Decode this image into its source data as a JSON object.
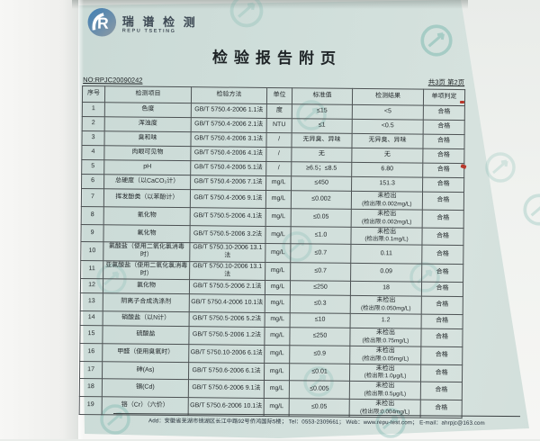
{
  "report": {
    "brand_cn": "瑞 谱 检 测",
    "brand_en": "REPU TSETING",
    "title": "检验报告附页",
    "report_no": "NO:RPJC20090242",
    "page_info": "共3页 第2页",
    "footer": "Add：安徽省芜湖市镜湖区长江中路92号侨鸿国际5楼；  Tel：0553-2309661；  Web：www.repu-test.com；  E-mail：ahrpjc@163.com"
  },
  "icons": {
    "logo": "repu-circle-r-logo",
    "watermark": "repu-circle-r-watermark"
  },
  "colors": {
    "paper": "#cfdeda",
    "watermark_teal": "#63ada3",
    "logo_blue": "#3f7fb5",
    "table_line": "#4d5254",
    "red_mark": "#b8382c"
  },
  "table": {
    "headers": [
      "序号",
      "检测项目",
      "检验方法",
      "单位",
      "标准值",
      "检测结果",
      "单项判定"
    ],
    "rows": [
      {
        "no": "1",
        "item": "色度",
        "method": "GB/T 5750.4-2006 1.1法",
        "unit": "度",
        "standard": "≤15",
        "result": "<5",
        "result_note": "",
        "verdict": "合格"
      },
      {
        "no": "2",
        "item": "浑浊度",
        "method": "GB/T 5750.4-2006 2.1法",
        "unit": "NTU",
        "standard": "≤1",
        "result": "<0.5",
        "result_note": "",
        "verdict": "合格"
      },
      {
        "no": "3",
        "item": "臭和味",
        "method": "GB/T 5750.4-2006 3.1法",
        "unit": "/",
        "standard": "无异臭、异味",
        "result": "无异臭、异味",
        "result_note": "",
        "verdict": "合格"
      },
      {
        "no": "4",
        "item": "肉眼可见物",
        "method": "GB/T 5750.4-2006 4.1法",
        "unit": "/",
        "standard": "无",
        "result": "无",
        "result_note": "",
        "verdict": "合格"
      },
      {
        "no": "5",
        "item": "pH",
        "method": "GB/T 5750.4-2006 5.1法",
        "unit": "/",
        "standard": "≥6.5；≤8.5",
        "result": "6.80",
        "result_note": "",
        "verdict": "合格"
      },
      {
        "no": "6",
        "item": "总硬度（以CaCO₃计）",
        "method": "GB/T 5750.4-2006 7.1法",
        "unit": "mg/L",
        "standard": "≤450",
        "result": "151.3",
        "result_note": "",
        "verdict": "合格"
      },
      {
        "no": "7",
        "item": "挥发酚类（以苯酚计）",
        "method": "GB/T 5750.4-2006 9.1法",
        "unit": "mg/L",
        "standard": "≤0.002",
        "result": "未检出",
        "result_note": "(检出限:0.002mg/L)",
        "verdict": "合格"
      },
      {
        "no": "8",
        "item": "氰化物",
        "method": "GB/T 5750.5-2006 4.1法",
        "unit": "mg/L",
        "standard": "≤0.05",
        "result": "未检出",
        "result_note": "(检出限:0.002mg/L)",
        "verdict": "合格"
      },
      {
        "no": "9",
        "item": "氟化物",
        "method": "GB/T 5750.5-2006 3.2法",
        "unit": "mg/L",
        "standard": "≤1.0",
        "result": "未检出",
        "result_note": "(检出限:0.1mg/L)",
        "verdict": "合格"
      },
      {
        "no": "10",
        "item": "氯酸盐（使用二氧化氯消毒时）",
        "method": "GB/T 5750.10-2006 13.1法",
        "unit": "mg/L",
        "standard": "≤0.7",
        "result": "0.11",
        "result_note": "",
        "verdict": "合格"
      },
      {
        "no": "11",
        "item": "亚氯酸盐（使用二氧化氯消毒时）",
        "method": "GB/T 5750.10-2006 13.1法",
        "unit": "mg/L",
        "standard": "≤0.7",
        "result": "0.09",
        "result_note": "",
        "verdict": "合格"
      },
      {
        "no": "12",
        "item": "氯化物",
        "method": "GB/T 5750.5-2006 2.1法",
        "unit": "mg/L",
        "standard": "≤250",
        "result": "18",
        "result_note": "",
        "verdict": "合格"
      },
      {
        "no": "13",
        "item": "阴离子合成洗涤剂",
        "method": "GB/T 5750.4-2006 10.1法",
        "unit": "mg/L",
        "standard": "≤0.3",
        "result": "未检出",
        "result_note": "(检出限:0.050mg/L)",
        "verdict": "合格"
      },
      {
        "no": "14",
        "item": "硝酸盐（以N计）",
        "method": "GB/T 5750.5-2006 5.2法",
        "unit": "mg/L",
        "standard": "≤10",
        "result": "1.2",
        "result_note": "",
        "verdict": "合格"
      },
      {
        "no": "15",
        "item": "硫酸盐",
        "method": "GB/T 5750.5-2006 1.2法",
        "unit": "mg/L",
        "standard": "≤250",
        "result": "未检出",
        "result_note": "(检出限:0.75mg/L)",
        "verdict": "合格"
      },
      {
        "no": "16",
        "item": "甲醛（使用臭氧时）",
        "method": "GB/T 5750.10-2006 6.1法",
        "unit": "mg/L",
        "standard": "≤0.9",
        "result": "未检出",
        "result_note": "(检出限:0.05mg/L)",
        "verdict": "合格"
      },
      {
        "no": "17",
        "item": "砷(As)",
        "method": "GB/T 5750.6-2006 6.1法",
        "unit": "mg/L",
        "standard": "≤0.01",
        "result": "未检出",
        "result_note": "(检出限:1.0μg/L)",
        "verdict": "合格"
      },
      {
        "no": "18",
        "item": "镉(Cd)",
        "method": "GB/T 5750.6-2006 9.1法",
        "unit": "mg/L",
        "standard": "≤0.005",
        "result": "未检出",
        "result_note": "(检出限:0.5μg/L)",
        "verdict": "合格"
      },
      {
        "no": "19",
        "item": "铬（Cr）（六价）",
        "method": "GB/T 5750.6-2006 10.1法",
        "unit": "mg/L",
        "standard": "≤0.05",
        "result": "未检出",
        "result_note": "(检出限:0.004mg/L)",
        "verdict": "合格"
      }
    ]
  }
}
